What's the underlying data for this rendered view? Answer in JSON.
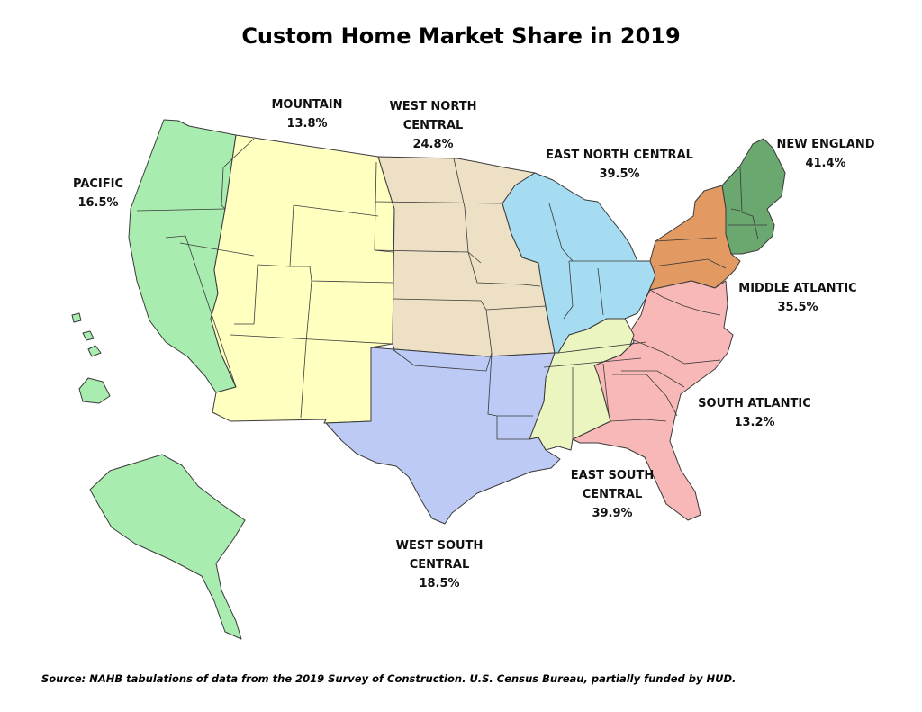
{
  "title": "Custom Home Market Share in 2019",
  "source": "Source: NAHB tabulations of data from the 2019 Survey of Construction. U.S. Census Bureau, partially funded by HUD.",
  "regions": {
    "pacific": {
      "name_line1": "PACIFIC",
      "name_line2": "",
      "value": "16.5%",
      "color": "#a8ecb0"
    },
    "mountain": {
      "name_line1": "MOUNTAIN",
      "name_line2": "",
      "value": "13.8%",
      "color": "#ffffc0"
    },
    "west_north_central": {
      "name_line1": "WEST NORTH",
      "name_line2": "CENTRAL",
      "value": "24.8%",
      "color": "#ede0c4"
    },
    "east_north_central": {
      "name_line1": "EAST NORTH CENTRAL",
      "name_line2": "",
      "value": "39.5%",
      "color": "#a6dcf2"
    },
    "new_england": {
      "name_line1": "NEW ENGLAND",
      "name_line2": "",
      "value": "41.4%",
      "color": "#6aa870"
    },
    "middle_atlantic": {
      "name_line1": "MIDDLE ATLANTIC",
      "name_line2": "",
      "value": "35.5%",
      "color": "#e29a62"
    },
    "south_atlantic": {
      "name_line1": "SOUTH ATLANTIC",
      "name_line2": "",
      "value": "13.2%",
      "color": "#f9b8b8"
    },
    "east_south_central": {
      "name_line1": "EAST SOUTH",
      "name_line2": "CENTRAL",
      "value": "39.9%",
      "color": "#eaf5c0"
    },
    "west_south_central": {
      "name_line1": "WEST SOUTH",
      "name_line2": "CENTRAL",
      "value": "18.5%",
      "color": "#bccaf5"
    }
  }
}
